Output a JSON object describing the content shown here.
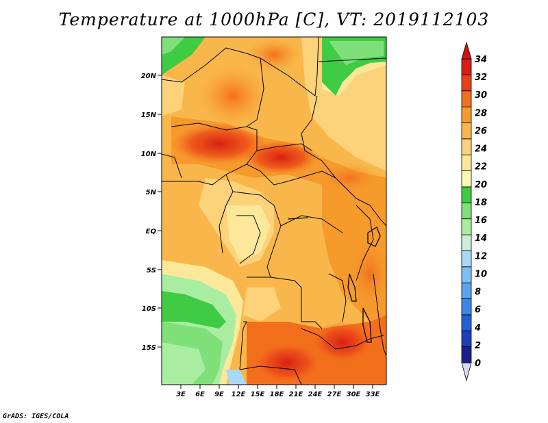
{
  "title": "Temperature at 1000hPa [C], VT: 2019112103",
  "credit": "GrADS: IGES/COLA",
  "map": {
    "lat_ticks": [
      "20N",
      "15N",
      "10N",
      "5N",
      "EQ",
      "5S",
      "10S",
      "15S"
    ],
    "lon_ticks": [
      "3E",
      "6E",
      "9E",
      "12E",
      "15E",
      "18E",
      "21E",
      "24E",
      "27E",
      "30E",
      "33E"
    ]
  },
  "colorbar": {
    "labels": [
      "0",
      "2",
      "4",
      "6",
      "8",
      "10",
      "12",
      "14",
      "16",
      "18",
      "20",
      "22",
      "24",
      "26",
      "28",
      "30",
      "32",
      "34"
    ],
    "colors": [
      "#1a1f8c",
      "#1b3fb8",
      "#2160d6",
      "#3d86e8",
      "#5aa3f0",
      "#7ec0f5",
      "#a9d8f8",
      "#cbeeda",
      "#a9eea0",
      "#7fe07a",
      "#3fcc44",
      "#fbfbb5",
      "#fde89a",
      "#fcd27a",
      "#f9b74b",
      "#f69a2c",
      "#f2701c",
      "#e84018",
      "#d81f14"
    ],
    "under_color": "#d8d8f0",
    "over_color": "#cc1414"
  }
}
